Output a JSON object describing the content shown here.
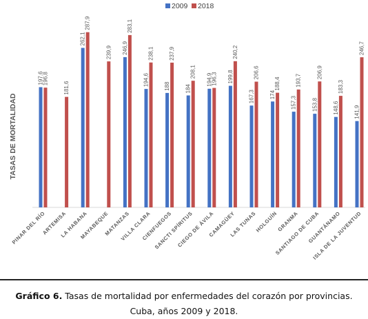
{
  "chart_data": {
    "type": "bar",
    "ylabel": "TASAS DE MORTALIDAD",
    "ylim": [
      0,
      300
    ],
    "grid": false,
    "legend_position": "top",
    "categories": [
      "PINAR DEL RÍO",
      "ARTEMISA",
      "LA HABANA",
      "MAYABEQUE",
      "MATANZAS",
      "VILLA CLARA",
      "CIENFUEGOS",
      "SANCTI SPÍRITUS",
      "CIEGO DE ÁVILA",
      "CAMAGÜEY",
      "LAS TUNAS",
      "HOLGUÍN",
      "GRANMA",
      "SANTIAGO DE CUBA",
      "GUANTÁNAMO",
      "ISLA DE LA JUVENTUD"
    ],
    "series": [
      {
        "name": "2009",
        "color": "#4472c4",
        "values": [
          197.6,
          null,
          262.1,
          null,
          246.9,
          194.6,
          188,
          184,
          194.9,
          199.8,
          167.3,
          174,
          157.3,
          153.8,
          148.6,
          141.9
        ],
        "labels": [
          "197,6",
          "",
          "262,1",
          "",
          "246,9",
          "194,6",
          "188",
          "184",
          "194,9",
          "199,8",
          "167,3",
          "174",
          "157,3",
          "153,8",
          "148,6",
          "141,9"
        ]
      },
      {
        "name": "2018",
        "color": "#c0504d",
        "values": [
          196.8,
          181.6,
          287.9,
          239.9,
          283.1,
          238.1,
          237.9,
          208.1,
          196.3,
          240.2,
          206.6,
          188.4,
          193.7,
          206.9,
          183.3,
          246.7
        ],
        "labels": [
          "196,8",
          "181,6",
          "287,9",
          "239,9",
          "283,1",
          "238,1",
          "237,9",
          "208,1",
          "196,3",
          "240,2",
          "206,6",
          "188,4",
          "193,7",
          "206,9",
          "183,3",
          "246,7"
        ]
      }
    ]
  },
  "caption": {
    "label": "Gráfico 6.",
    "line1": " Tasas de mortalidad por enfermedades del corazón por provincias.",
    "line2": "Cuba, años 2009 y 2018."
  }
}
